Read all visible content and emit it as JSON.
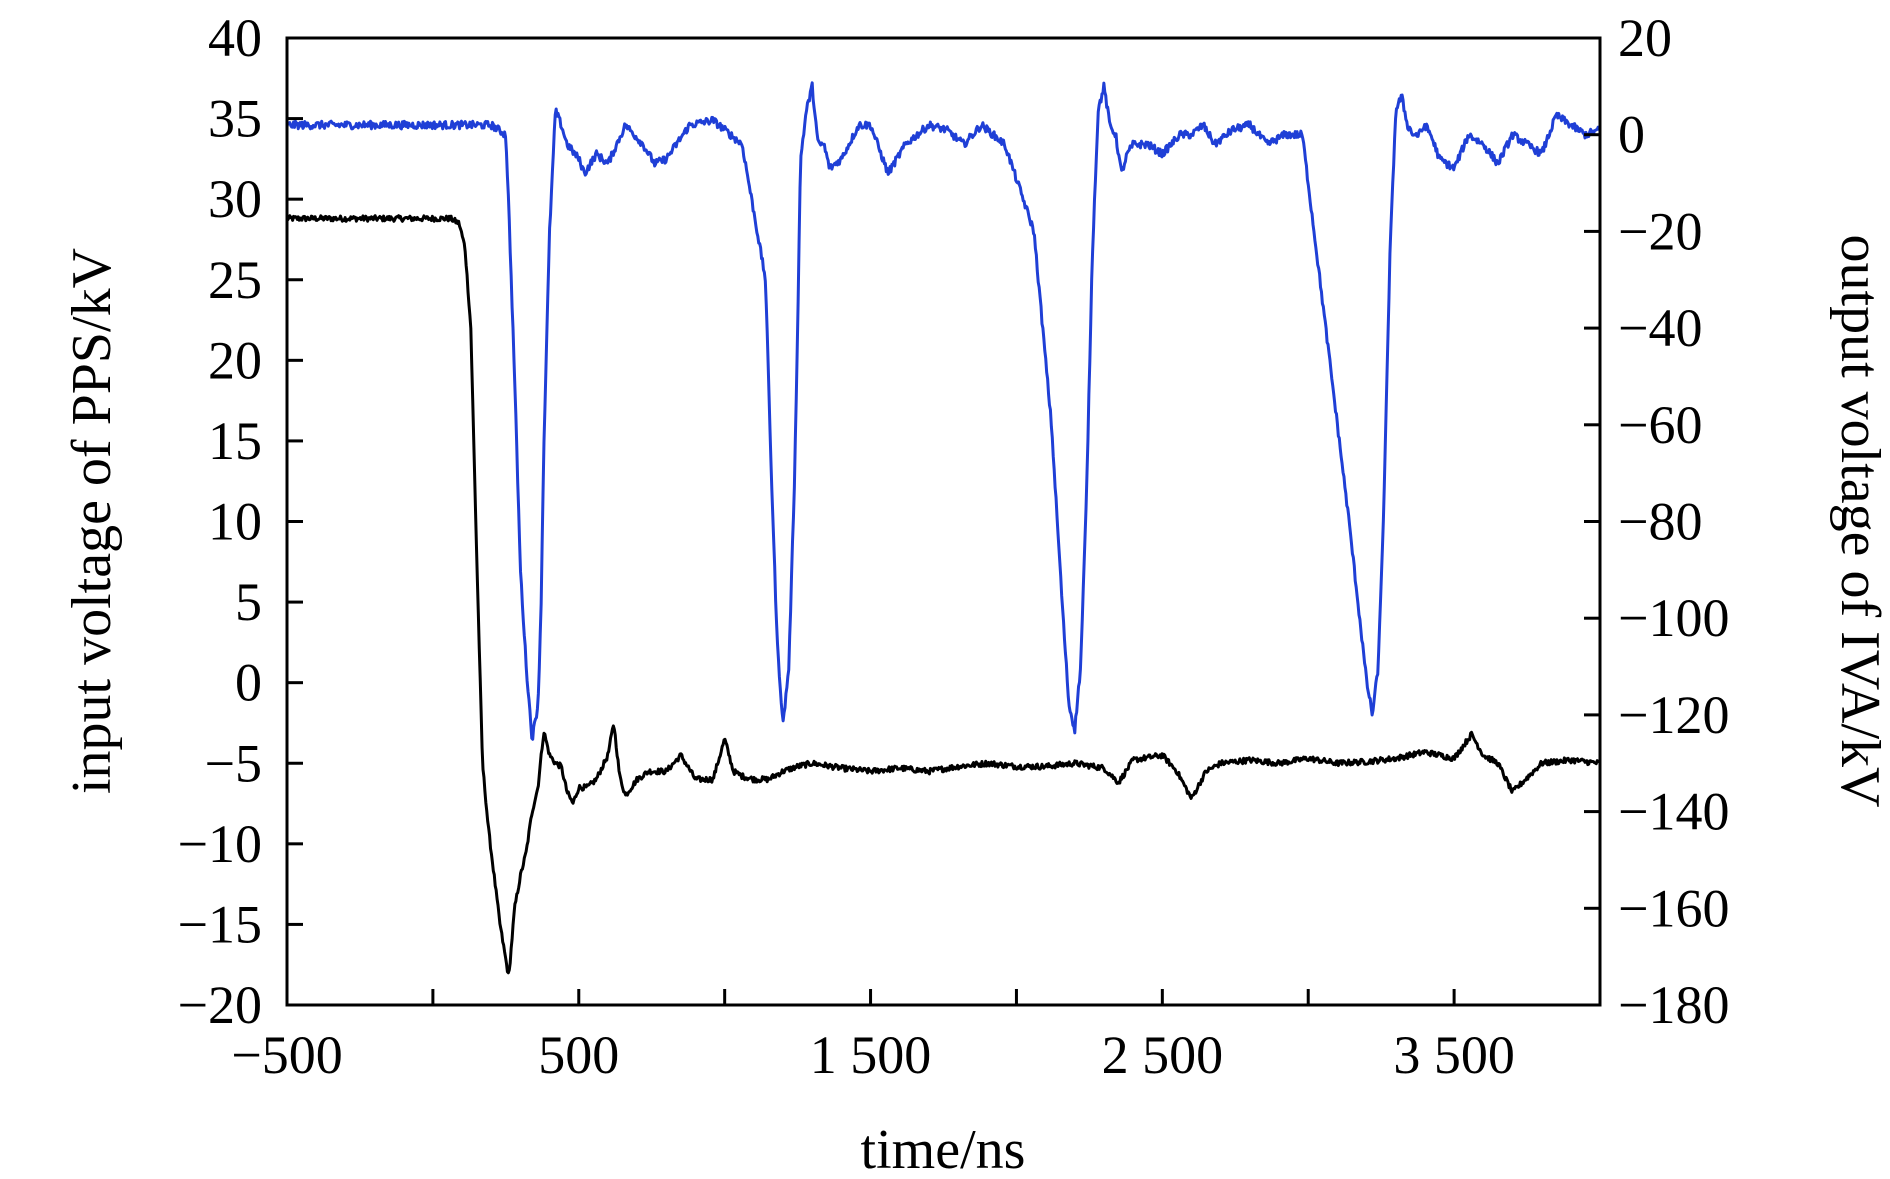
{
  "chart_data": {
    "type": "line",
    "title": "",
    "xlabel": "time/ns",
    "ylabel_left": "input voltage of PPS/kV",
    "ylabel_right": "output voltage of IVA/kV",
    "xlim": [
      -500,
      4000
    ],
    "ylim_left": [
      -20,
      40
    ],
    "ylim_right": [
      -180,
      20
    ],
    "grid": false,
    "legend": "none",
    "x_ticks": [
      -500,
      0,
      500,
      1000,
      1500,
      2000,
      2500,
      3000,
      3500,
      4000
    ],
    "x_tick_labels": [
      {
        "value": -500,
        "label": "−500"
      },
      {
        "value": 500,
        "label": "500"
      },
      {
        "value": 1500,
        "label": "1 500"
      },
      {
        "value": 2500,
        "label": "2 500"
      },
      {
        "value": 3500,
        "label": "3 500"
      }
    ],
    "left_ticks": [
      {
        "value": 40,
        "label": "40"
      },
      {
        "value": 35,
        "label": "35"
      },
      {
        "value": 30,
        "label": "30"
      },
      {
        "value": 25,
        "label": "25"
      },
      {
        "value": 20,
        "label": "20"
      },
      {
        "value": 15,
        "label": "15"
      },
      {
        "value": 10,
        "label": "10"
      },
      {
        "value": 5,
        "label": "5"
      },
      {
        "value": 0,
        "label": "0"
      },
      {
        "value": -5,
        "label": "−5"
      },
      {
        "value": -10,
        "label": "−10"
      },
      {
        "value": -15,
        "label": "−15"
      },
      {
        "value": -20,
        "label": "−20"
      }
    ],
    "right_ticks": [
      {
        "value": 20,
        "label": "20"
      },
      {
        "value": 0,
        "label": "0"
      },
      {
        "value": -20,
        "label": "−20"
      },
      {
        "value": -40,
        "label": "−40"
      },
      {
        "value": -60,
        "label": "−60"
      },
      {
        "value": -80,
        "label": "−80"
      },
      {
        "value": -100,
        "label": "−100"
      },
      {
        "value": -120,
        "label": "−120"
      },
      {
        "value": -140,
        "label": "−140"
      },
      {
        "value": -160,
        "label": "−160"
      },
      {
        "value": -180,
        "label": "−180"
      }
    ],
    "series": [
      {
        "axis": "left",
        "color": "#000000",
        "x": [
          -500,
          -100,
          20,
          60,
          90,
          110,
          130,
          150,
          170,
          190,
          210,
          230,
          260,
          280,
          300,
          320,
          340,
          360,
          380,
          400,
          420,
          440,
          460,
          480,
          500,
          530,
          560,
          600,
          620,
          640,
          660,
          700,
          740,
          800,
          850,
          900,
          960,
          1000,
          1030,
          1060,
          1100,
          1150,
          1200,
          1250,
          1300,
          1400,
          1500,
          1600,
          1700,
          1800,
          1900,
          2000,
          2100,
          2200,
          2300,
          2350,
          2400,
          2500,
          2550,
          2600,
          2650,
          2700,
          2800,
          2900,
          3000,
          3100,
          3200,
          3300,
          3400,
          3500,
          3560,
          3600,
          3650,
          3700,
          3800,
          3900,
          4000
        ],
        "y": [
          28.8,
          28.8,
          28.8,
          28.8,
          28.5,
          27,
          22,
          8,
          -5,
          -9,
          -12,
          -15,
          -18.3,
          -14,
          -12,
          -10.5,
          -8,
          -6.5,
          -3,
          -4.5,
          -5,
          -5.2,
          -6.8,
          -7.5,
          -6.5,
          -6.5,
          -6,
          -4.5,
          -2.5,
          -5.8,
          -7,
          -6,
          -5.5,
          -5.5,
          -4.5,
          -6,
          -6,
          -3.5,
          -5.5,
          -5.8,
          -6,
          -6,
          -5.5,
          -5.2,
          -5,
          -5.3,
          -5.5,
          -5.3,
          -5.5,
          -5.2,
          -5,
          -5.2,
          -5.2,
          -5,
          -5.3,
          -6.2,
          -4.8,
          -4.5,
          -5.5,
          -7.2,
          -5.5,
          -5,
          -4.8,
          -5,
          -4.7,
          -5,
          -4.9,
          -4.7,
          -4.3,
          -4.7,
          -3.2,
          -4.5,
          -5,
          -6.8,
          -5,
          -4.8,
          -5
        ]
      },
      {
        "axis": "right",
        "color": "#1f3fd6",
        "x": [
          -500,
          200,
          250,
          260,
          280,
          300,
          320,
          340,
          360,
          370,
          380,
          400,
          420,
          440,
          460,
          500,
          520,
          560,
          600,
          660,
          720,
          760,
          800,
          880,
          960,
          1060,
          1140,
          1160,
          1180,
          1200,
          1220,
          1240,
          1250,
          1260,
          1280,
          1300,
          1320,
          1340,
          1360,
          1400,
          1460,
          1500,
          1560,
          1620,
          1700,
          1760,
          1820,
          1880,
          1960,
          2060,
          2120,
          2160,
          2180,
          2200,
          2220,
          2240,
          2260,
          2280,
          2300,
          2320,
          2340,
          2360,
          2380,
          2400,
          2450,
          2500,
          2560,
          2600,
          2640,
          2680,
          2740,
          2800,
          2860,
          2920,
          2980,
          3060,
          3140,
          3200,
          3220,
          3240,
          3260,
          3280,
          3300,
          3320,
          3340,
          3360,
          3380,
          3400,
          3420,
          3450,
          3500,
          3550,
          3600,
          3650,
          3700,
          3750,
          3800,
          3850,
          3900,
          3950,
          4000
        ],
        "y": [
          2,
          2,
          0,
          -15,
          -50,
          -90,
          -110,
          -125,
          -118,
          -100,
          -65,
          -20,
          5,
          2,
          -2,
          -5,
          -8,
          -4,
          -6,
          2,
          -2,
          -6,
          -5,
          2,
          3,
          -2,
          -30,
          -70,
          -105,
          -122,
          -110,
          -70,
          -40,
          -5,
          5,
          10,
          -2,
          -2,
          -7,
          -5,
          2,
          2,
          -8,
          -2,
          2,
          1,
          -2,
          2,
          -2,
          -20,
          -60,
          -100,
          -118,
          -123,
          -110,
          -75,
          -25,
          5,
          10,
          2,
          0,
          -8,
          -4,
          -2,
          -2,
          -4,
          0,
          0,
          2,
          -2,
          1,
          2,
          -2,
          0,
          0,
          -40,
          -80,
          -113,
          -120,
          -110,
          -75,
          -25,
          5,
          8,
          2,
          0,
          0,
          2,
          0,
          -5,
          -7,
          0,
          -2,
          -6,
          0,
          -2,
          -4,
          4,
          2,
          0,
          1
        ]
      }
    ]
  }
}
